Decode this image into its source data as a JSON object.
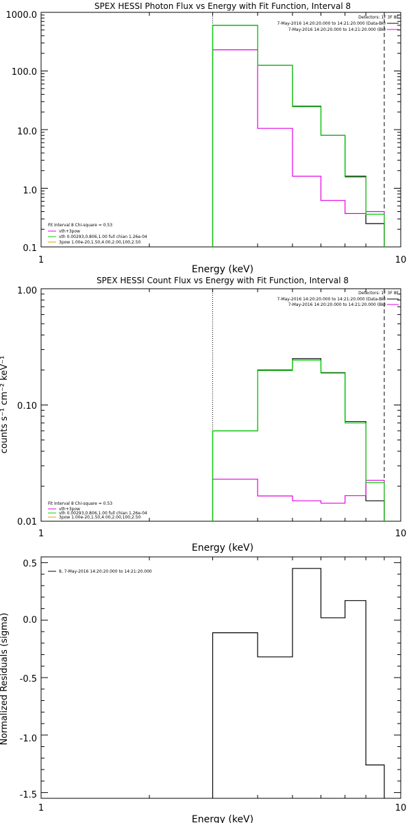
{
  "chart_data": [
    {
      "type": "line",
      "title": "SPEX HESSI Photon Flux vs Energy with Fit Function, Interval 8",
      "xlabel": "Energy (keV)",
      "ylabel": "",
      "xscale": "log",
      "yscale": "log",
      "xlim": [
        1,
        10
      ],
      "ylim": [
        0.1,
        1000
      ],
      "x_ticks": [
        "1",
        "10"
      ],
      "y_ticks": [
        "0.1",
        "1.0",
        "10.0",
        "100.0",
        "1000.0"
      ],
      "top_right_legend": {
        "detectors": "Detectors: 1F 3F 8F",
        "entries": [
          {
            "text": "7-May-2016 14:20:20.000 to 14:21:20.000 (Data-Bk)",
            "color": "#000000"
          },
          {
            "text": "7-May-2016 14:20:20.000 to 14:21:20.000 (Bk)",
            "color": "#e000e0"
          }
        ]
      },
      "bottom_left_legend": {
        "header": "Fit Interval 8   Chi-square = 0.53",
        "entries": [
          {
            "text": "vth+3pow",
            "color": "#e000e0"
          },
          {
            "text": "vth 0.00293,0.806,1.00  full chian 1.26e-04",
            "color": "#00d000"
          },
          {
            "text": "3pow 1.00e-20,1.50,4.00,2.00,100,2.50",
            "color": "#e0a000"
          }
        ]
      },
      "edges": [
        3.0,
        4.0,
        5.0,
        6.0,
        7.0,
        8.0,
        9.0
      ],
      "series": [
        {
          "name": "7-May-2016 14:20:20.000 to 14:21:20.000 (Data-Bk)",
          "color": "#000000",
          "values": [
            600,
            125,
            25,
            8,
            1.6,
            0.25
          ]
        },
        {
          "name": "7-May-2016 14:20:20.000 to 14:21:20.000 (Bk)",
          "color": "#e000e0",
          "values": [
            230,
            10.5,
            1.6,
            0.62,
            0.37,
            0.4
          ]
        },
        {
          "name": "vth 0.00293,0.806,1.00  full chian 1.26e-04",
          "color": "#00d000",
          "values": [
            600,
            125,
            24.5,
            8,
            1.55,
            0.36
          ]
        }
      ],
      "vlines": [
        {
          "x": 3.0,
          "style": "dotted"
        },
        {
          "x": 9.0,
          "style": "dashed"
        }
      ]
    },
    {
      "type": "line",
      "title": "SPEX HESSI Count Flux vs Energy with Fit Function, Interval 8",
      "xlabel": "Energy (keV)",
      "ylabel": "counts s⁻¹ cm⁻² keV⁻¹",
      "xscale": "log",
      "yscale": "log",
      "xlim": [
        1,
        10
      ],
      "ylim": [
        0.01,
        1.0
      ],
      "x_ticks": [
        "1",
        "10"
      ],
      "y_ticks": [
        "0.01",
        "0.10",
        "1.00"
      ],
      "top_right_legend": {
        "detectors": "Detectors: 1F 3F 8F",
        "entries": [
          {
            "text": "7-May-2016 14:20:20.000 to 14:21:20.000 (Data-Bk)",
            "color": "#000000"
          },
          {
            "text": "7-May-2016 14:20:20.000 to 14:21:20.000 (Bk)",
            "color": "#e000e0"
          }
        ]
      },
      "bottom_left_legend": {
        "header": "Fit Interval 8   Chi-square = 0.53",
        "entries": [
          {
            "text": "vth+3pow",
            "color": "#e000e0"
          },
          {
            "text": "vth 0.00293,0.806,1.00  full chian 1.26e-04",
            "color": "#00d000"
          },
          {
            "text": "3pow 1.00e-20,1.50,4.00,2.00,100,2.50",
            "color": "#e0a000"
          }
        ]
      },
      "edges": [
        3.0,
        4.0,
        5.0,
        6.0,
        7.0,
        8.0,
        9.0
      ],
      "series": [
        {
          "name": "7-May-2016 14:20:20.000 to 14:21:20.000 (Data-Bk)",
          "color": "#000000",
          "values": [
            0.06,
            0.2,
            0.25,
            0.19,
            0.072,
            0.015
          ]
        },
        {
          "name": "7-May-2016 14:20:20.000 to 14:21:20.000 (Bk)",
          "color": "#e000e0",
          "values": [
            0.023,
            0.0165,
            0.015,
            0.0143,
            0.0166,
            0.0225
          ]
        },
        {
          "name": "vth 0.00293,0.806,1.00  full chian 1.26e-04",
          "color": "#00d000",
          "values": [
            0.06,
            0.198,
            0.243,
            0.188,
            0.07,
            0.0215
          ]
        }
      ],
      "vlines": [
        {
          "x": 3.0,
          "style": "dotted"
        },
        {
          "x": 9.0,
          "style": "dashed"
        }
      ]
    },
    {
      "type": "line",
      "title": "",
      "xlabel": "Energy (keV)",
      "ylabel": "Normalized Residuals (sigma)",
      "xscale": "log",
      "yscale": "linear",
      "xlim": [
        1,
        10
      ],
      "ylim": [
        -1.55,
        0.55
      ],
      "x_ticks": [
        "1",
        "10"
      ],
      "y_ticks": [
        "-1.5",
        "-1.0",
        "-0.5",
        "0.0",
        "0.5"
      ],
      "legend": {
        "text": "8,  7-May-2016 14:20:20.000 to 14:21:20.000",
        "color": "#000000"
      },
      "edges": [
        3.0,
        4.0,
        5.0,
        6.0,
        7.0,
        8.0,
        9.0
      ],
      "series": [
        {
          "name": "8,  7-May-2016 14:20:20.000 to 14:21:20.000",
          "color": "#000000",
          "values": [
            -0.11,
            -0.32,
            0.45,
            0.02,
            0.17,
            -1.26
          ]
        }
      ]
    }
  ]
}
